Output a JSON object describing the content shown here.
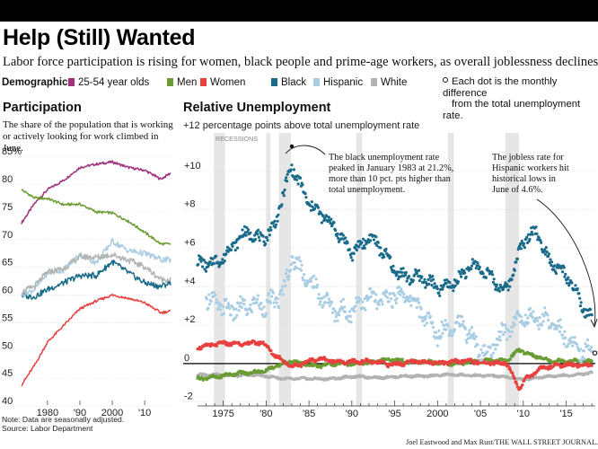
{
  "title": "Help (Still) Wanted",
  "subtitle": "Labor force participation is rising for women, black people and prime-age workers, as overall joblessness declines.",
  "legend": {
    "title": "Demographic",
    "items": [
      {
        "label": "25-54 year olds",
        "color": "#a0307e"
      },
      {
        "label": "Men",
        "color": "#6a9c34"
      },
      {
        "label": "Women",
        "color": "#e8403f"
      },
      {
        "label": "Black",
        "color": "#1a6a8a"
      },
      {
        "label": "Hispanic",
        "color": "#a9cde2"
      },
      {
        "label": "White",
        "color": "#b3b3b3"
      }
    ],
    "note_line1": "Each dot is the monthly difference",
    "note_line2": "from the total unemployment rate."
  },
  "participation": {
    "heading": "Participation",
    "desc": "The share of the population that is working or actively looking for work climbed in June."
  },
  "relative": {
    "heading": "Relative Unemployment",
    "subhead": "+12 percentage points above total unemployment rate",
    "recessions_label": "RECESSIONS",
    "ann_black_1": "The black unemployment rate",
    "ann_black_2": "peaked in January 1983 at 21.2%,",
    "ann_black_3": "more than 10 pct. pts higher than",
    "ann_black_4": "total unemployment.",
    "ann_hisp_1": "The jobless rate for",
    "ann_hisp_2": "Hispanic workers hit",
    "ann_hisp_3": "historical lows in",
    "ann_hisp_4": "June of 4.6%."
  },
  "note_line1": "Note: Data are seasonally adjusted.",
  "note_line2": "Source: Labor Department",
  "credit": "Joel Eastwood and Max Rust/THE WALL STREET JOURNAL.",
  "chart_data": [
    {
      "type": "line",
      "title": "Participation",
      "ylim": [
        40,
        86
      ],
      "yticks": [
        "85%",
        "80",
        "75",
        "70",
        "65",
        "60",
        "55",
        "50",
        "45",
        "40"
      ],
      "xticks": [
        "1980",
        "'90",
        "2000",
        "'10"
      ],
      "x": [
        1972,
        1976,
        1980,
        1985,
        1990,
        1995,
        2000,
        2005,
        2010,
        2015,
        2018
      ],
      "series": [
        {
          "name": "25-54 year olds",
          "color": "#a0307e",
          "values": [
            73.0,
            76.5,
            79.0,
            80.7,
            83.0,
            83.6,
            84.0,
            83.0,
            82.5,
            80.9,
            82.0
          ]
        },
        {
          "name": "Men",
          "color": "#6a9c34",
          "values": [
            79.0,
            77.5,
            77.4,
            76.3,
            76.4,
            75.0,
            74.8,
            73.3,
            71.3,
            69.2,
            69.2
          ]
        },
        {
          "name": "Women",
          "color": "#e8403f",
          "values": [
            43.8,
            47.3,
            51.5,
            54.5,
            57.5,
            58.9,
            60.0,
            59.4,
            58.6,
            56.8,
            57.1
          ]
        },
        {
          "name": "Black",
          "color": "#1a6a8a",
          "values": [
            59.9,
            59.7,
            61.0,
            62.2,
            63.5,
            63.5,
            66.0,
            64.0,
            62.2,
            61.5,
            62.3
          ]
        },
        {
          "name": "Hispanic",
          "color": "#a9cde2",
          "values": [
            60.0,
            61.0,
            64.0,
            64.5,
            67.4,
            65.8,
            69.7,
            68.0,
            67.5,
            66.4,
            66.3
          ]
        },
        {
          "name": "White",
          "color": "#b3b3b3",
          "values": [
            60.5,
            61.6,
            64.1,
            64.8,
            66.9,
            66.8,
            67.3,
            66.3,
            65.1,
            62.8,
            62.8
          ]
        }
      ]
    },
    {
      "type": "scatter",
      "title": "Relative Unemployment",
      "ylim": [
        -2.2,
        12
      ],
      "yticks": [
        "+10",
        "+8",
        "+6",
        "+4",
        "+2",
        "0",
        "-2"
      ],
      "xticks": [
        "1975",
        "'80",
        "'85",
        "'90",
        "'95",
        "2000",
        "'05",
        "'10",
        "'15"
      ],
      "recessions": [
        [
          1973.9,
          1975.2
        ],
        [
          1980.0,
          1980.5
        ],
        [
          1981.5,
          1982.9
        ],
        [
          1990.5,
          1991.2
        ],
        [
          2001.2,
          2001.9
        ],
        [
          2007.9,
          2009.5
        ]
      ],
      "series": [
        {
          "name": "Black",
          "color": "#1a6a8a",
          "x": [
            1972,
            1975,
            1978,
            1979.5,
            1981,
            1983,
            1985,
            1988,
            1990,
            1992,
            1995,
            1998,
            2000,
            2002,
            2004,
            2006,
            2008,
            2010,
            2011.5,
            2013,
            2015,
            2017,
            2018
          ],
          "values": [
            5.2,
            5.5,
            6.9,
            6.6,
            7.1,
            10.2,
            8.5,
            6.9,
            5.9,
            6.6,
            4.9,
            4.4,
            3.8,
            4.4,
            5.0,
            4.6,
            3.9,
            6.2,
            6.9,
            5.6,
            4.5,
            2.8,
            2.4
          ]
        },
        {
          "name": "Hispanic",
          "color": "#a9cde2",
          "x": [
            1973,
            1975,
            1977,
            1980,
            1982,
            1983,
            1985,
            1988,
            1990,
            1992,
            1995,
            1998,
            2000,
            2003,
            2006,
            2008,
            2010,
            2012,
            2015,
            2017,
            2018
          ],
          "values": [
            3.2,
            2.8,
            3.1,
            2.8,
            3.9,
            5.7,
            4.0,
            3.0,
            2.6,
            3.4,
            3.6,
            2.9,
            1.7,
            1.9,
            0.5,
            1.5,
            2.7,
            2.3,
            1.4,
            0.8,
            0.6
          ]
        },
        {
          "name": "Women",
          "color": "#e8403f",
          "x": [
            1972,
            1975,
            1978,
            1979.5,
            1981,
            1983,
            1986,
            1990,
            1995,
            2000,
            2005,
            2008,
            2009.5,
            2010.5,
            2012,
            2015,
            2018
          ],
          "values": [
            0.9,
            1.0,
            1.1,
            1.1,
            0.4,
            -0.1,
            0.2,
            0.1,
            0.0,
            0.1,
            0.1,
            0.0,
            -1.3,
            -0.7,
            -0.2,
            -0.1,
            0.0
          ]
        },
        {
          "name": "Men",
          "color": "#6a9c34",
          "x": [
            1972,
            1975,
            1978,
            1980,
            1983,
            1986,
            1990,
            1995,
            2000,
            2005,
            2008,
            2009.5,
            2011,
            2013,
            2016,
            2018
          ],
          "values": [
            -0.8,
            -0.6,
            -0.5,
            -0.3,
            0.1,
            -0.1,
            0.0,
            0.2,
            0.0,
            0.1,
            0.2,
            0.7,
            0.4,
            0.2,
            0.1,
            0.1
          ]
        },
        {
          "name": "White",
          "color": "#b3b3b3",
          "x": [
            1972,
            1975,
            1978,
            1981,
            1983,
            1986,
            1990,
            1995,
            2000,
            2005,
            2010,
            2015,
            2018
          ],
          "values": [
            -0.6,
            -0.6,
            -0.6,
            -0.7,
            -0.8,
            -0.8,
            -0.7,
            -0.7,
            -0.6,
            -0.6,
            -0.8,
            -0.6,
            -0.5
          ]
        }
      ]
    }
  ]
}
